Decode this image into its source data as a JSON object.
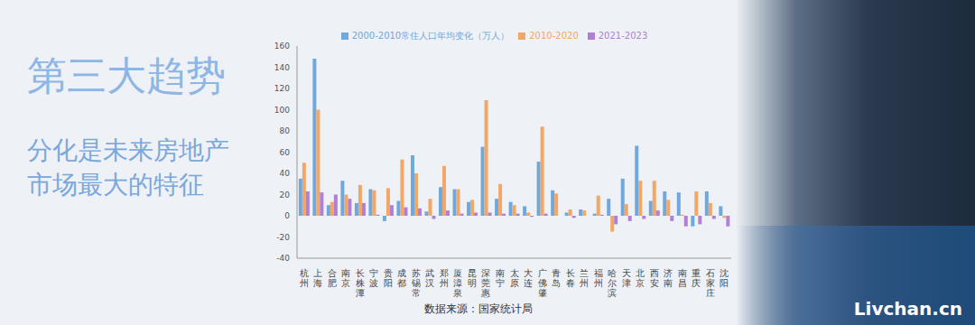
{
  "chart_data": {
    "type": "bar",
    "title": "第三大趋势",
    "subtitle": "分化是未来房地产市场最大的特征",
    "annotations": [
      "数据来源：国家统计局",
      "Livchan.cn"
    ],
    "categories": [
      "杭州",
      "上海",
      "合肥",
      "南京",
      "长株潭",
      "宁波",
      "贵阳",
      "成都",
      "苏锡常",
      "武汉",
      "郑州",
      "厦漳泉",
      "昆明",
      "深莞惠",
      "南宁",
      "太原",
      "大连",
      "广佛肇",
      "青岛",
      "长春",
      "兰州",
      "福州",
      "哈尔滨",
      "天津",
      "北京",
      "西安",
      "济南",
      "南昌",
      "重庆",
      "石家庄",
      "沈阳"
    ],
    "series": [
      {
        "name": "2000-2010常住人口年均变化（万人）",
        "color": "#6fa8dc",
        "values": [
          35,
          148,
          10,
          33,
          12,
          25,
          -5,
          14,
          57,
          4,
          27,
          25,
          13,
          65,
          16,
          13,
          9,
          51,
          24,
          3,
          6,
          2,
          16,
          35,
          66,
          14,
          23,
          22,
          -10,
          23,
          9
        ]
      },
      {
        "name": "2010-2020",
        "color": "#f2a766",
        "values": [
          50,
          100,
          13,
          20,
          29,
          24,
          26,
          53,
          40,
          16,
          47,
          25,
          15,
          109,
          30,
          10,
          3,
          84,
          21,
          6,
          5,
          19,
          -15,
          11,
          33,
          33,
          15,
          1,
          23,
          12,
          -2
        ]
      },
      {
        "name": "2021-2023",
        "color": "#b07fd6",
        "values": [
          23,
          22,
          20,
          16,
          12,
          1,
          10,
          8,
          7,
          -3,
          5,
          2,
          3,
          3,
          2,
          2,
          -1,
          2,
          0,
          -2,
          0,
          1,
          -8,
          -5,
          -3,
          5,
          -5,
          -10,
          -8,
          -3,
          -10
        ]
      }
    ],
    "ylim": [
      -40,
      160
    ],
    "yticks": [
      -40,
      -20,
      0,
      20,
      40,
      60,
      80,
      100,
      120,
      140,
      160
    ],
    "grid": false,
    "legend": "top"
  }
}
